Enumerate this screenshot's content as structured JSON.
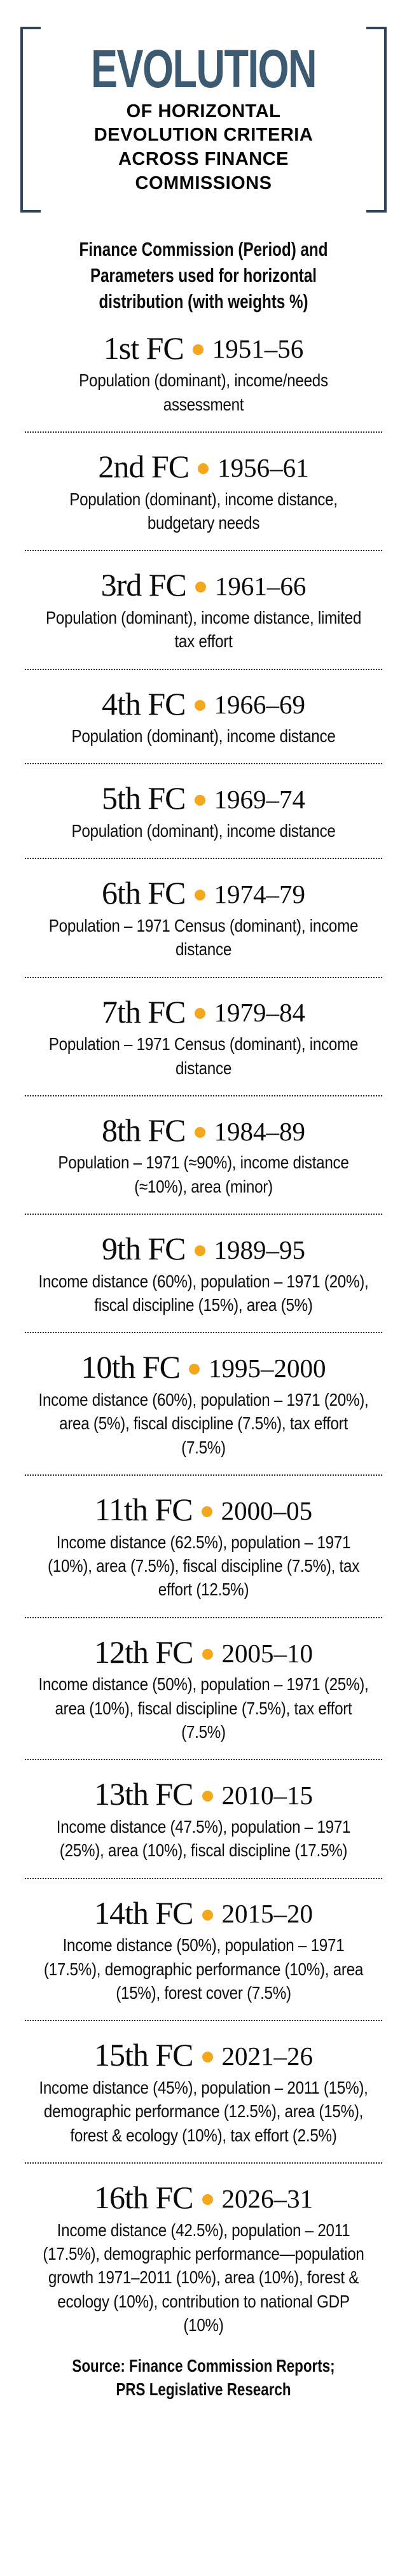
{
  "title": {
    "word": "EVOLUTION",
    "lines": [
      "OF HORIZONTAL",
      "DEVOLUTION CRITERIA",
      "ACROSS FINANCE",
      "COMMISSIONS"
    ]
  },
  "subtitle": "Finance Commission (Period) and Parameters used for horizontal distribution (with weights %)",
  "entries": [
    {
      "name": "1st FC",
      "period": "1951–56",
      "criteria": "Population (dominant), income/needs assessment"
    },
    {
      "name": "2nd FC",
      "period": "1956–61",
      "criteria": "Population (dominant), income distance, budgetary needs"
    },
    {
      "name": "3rd FC",
      "period": "1961–66",
      "criteria": "Population (dominant), income distance, limited tax effort"
    },
    {
      "name": "4th FC",
      "period": "1966–69",
      "criteria": "Population (dominant), income distance"
    },
    {
      "name": "5th FC",
      "period": "1969–74",
      "criteria": "Population (dominant), income distance"
    },
    {
      "name": "6th FC",
      "period": "1974–79",
      "criteria": "Population – 1971 Census (dominant), income distance"
    },
    {
      "name": "7th FC",
      "period": "1979–84",
      "criteria": "Population – 1971 Census (dominant), income distance"
    },
    {
      "name": "8th FC",
      "period": "1984–89",
      "criteria": "Population – 1971 (≈90%), income distance (≈10%), area (minor)"
    },
    {
      "name": "9th FC",
      "period": "1989–95",
      "criteria": "Income distance (60%), population – 1971 (20%), fiscal discipline (15%), area (5%)"
    },
    {
      "name": "10th FC",
      "period": "1995–2000",
      "criteria": "Income distance (60%), population – 1971 (20%), area (5%), fiscal discipline (7.5%), tax effort (7.5%)"
    },
    {
      "name": "11th FC",
      "period": "2000–05",
      "criteria": "Income distance (62.5%), population – 1971 (10%), area (7.5%), fiscal discipline (7.5%), tax effort (12.5%)"
    },
    {
      "name": "12th FC",
      "period": "2005–10",
      "criteria": "Income distance (50%), population – 1971 (25%), area (10%), fiscal discipline (7.5%), tax effort (7.5%)"
    },
    {
      "name": "13th FC",
      "period": "2010–15",
      "criteria": "Income distance (47.5%), population – 1971 (25%), area (10%), fiscal discipline (17.5%)"
    },
    {
      "name": "14th FC",
      "period": "2015–20",
      "criteria": "Income distance (50%), population – 1971 (17.5%), demographic performance (10%), area (15%), forest cover (7.5%)"
    },
    {
      "name": "15th FC",
      "period": "2021–26",
      "criteria": "Income distance (45%), population – 2011 (15%), demographic performance (12.5%), area (15%), forest & ecology (10%), tax effort (2.5%)"
    },
    {
      "name": "16th FC",
      "period": "2026–31",
      "criteria": "Income distance (42.5%), population – 2011 (17.5%), demographic performance—population growth 1971–2011 (10%), area (10%), forest & ecology (10%), contribution to national GDP (10%)"
    }
  ],
  "source": "Source: Finance Commission Reports; PRS Legislative Research",
  "colors": {
    "accent_blue": "#3d5a73",
    "bracket": "#2d4359",
    "bullet_orange": "#f2a71d",
    "text": "#0e0e0e"
  }
}
